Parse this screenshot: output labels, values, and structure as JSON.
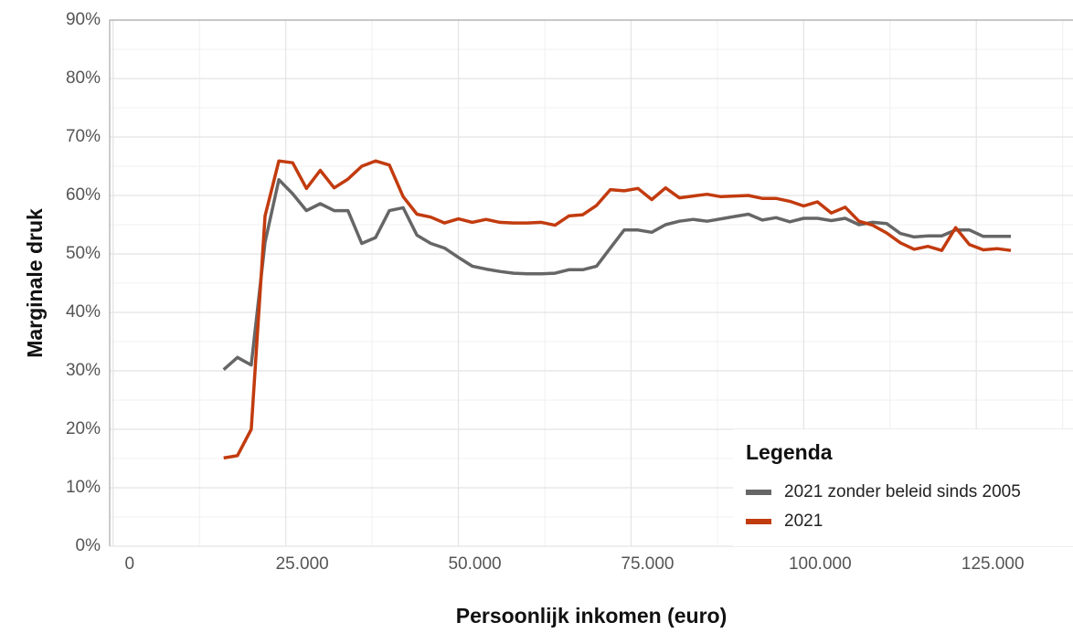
{
  "chart_data": {
    "type": "line",
    "x_label": "Persoonlijk inkomen (euro)",
    "y_label": "Marginale druk",
    "legend_title": "Legenda",
    "legend_position": "bottom-right",
    "grid": true,
    "xlim": [
      -500,
      139000
    ],
    "ylim": [
      0,
      90
    ],
    "xticks": [
      0,
      {
        "value": 25000,
        "label": "25.000"
      },
      {
        "value": 50000,
        "label": "50.000"
      },
      {
        "value": 75000,
        "label": "75.000"
      },
      {
        "value": 100000,
        "label": "100.000"
      },
      {
        "value": 125000,
        "label": "125.000"
      }
    ],
    "yticks": [
      {
        "value": 0,
        "label": "0%"
      },
      {
        "value": 10,
        "label": "10%"
      },
      {
        "value": 20,
        "label": "20%"
      },
      {
        "value": 30,
        "label": "30%"
      },
      {
        "value": 40,
        "label": "40%"
      },
      {
        "value": 50,
        "label": "50%"
      },
      {
        "value": 60,
        "label": "60%"
      },
      {
        "value": 70,
        "label": "70%"
      },
      {
        "value": 80,
        "label": "80%"
      },
      {
        "value": 90,
        "label": "90%"
      }
    ],
    "x": [
      16000,
      18000,
      20000,
      22000,
      24000,
      26000,
      28000,
      30000,
      32000,
      34000,
      36000,
      38000,
      40000,
      42000,
      44000,
      46000,
      48000,
      50000,
      52000,
      54000,
      56000,
      58000,
      60000,
      62000,
      64000,
      66000,
      68000,
      70000,
      72000,
      74000,
      76000,
      78000,
      80000,
      82000,
      84000,
      86000,
      88000,
      90000,
      92000,
      94000,
      96000,
      98000,
      100000,
      102000,
      104000,
      106000,
      108000,
      110000,
      112000,
      114000,
      116000,
      118000,
      120000,
      122000,
      124000,
      126000,
      128000,
      130000
    ],
    "series": [
      {
        "name": "2021 zonder beleid sinds 2005",
        "color": "#666666",
        "values": [
          30.2,
          32.3,
          31,
          52,
          62.7,
          60.3,
          57.4,
          58.6,
          57.4,
          57.4,
          51.8,
          52.8,
          57.4,
          57.9,
          53.2,
          51.8,
          51,
          49.4,
          47.9,
          47.4,
          47,
          46.7,
          46.6,
          46.6,
          46.7,
          47.3,
          47.3,
          47.9,
          51,
          54.1,
          54.1,
          53.7,
          55,
          55.6,
          55.9,
          55.6,
          56,
          56.4,
          56.8,
          55.8,
          56.2,
          55.5,
          56.1,
          56.1,
          55.7,
          56.1,
          55,
          55.4,
          55.2,
          53.5,
          52.9,
          53.1,
          53.1,
          54.1,
          54.1,
          53,
          53,
          53
        ]
      },
      {
        "name": "2021",
        "color": "#c23b0e",
        "values": [
          15.1,
          15.5,
          20,
          56.5,
          65.9,
          65.6,
          61.2,
          64.3,
          61.3,
          62.8,
          65,
          65.9,
          65.2,
          59.8,
          56.8,
          56.3,
          55.3,
          56,
          55.4,
          55.9,
          55.4,
          55.3,
          55.3,
          55.4,
          54.9,
          56.5,
          56.7,
          58.3,
          61,
          60.8,
          61.2,
          59.3,
          61.3,
          59.6,
          59.9,
          60.2,
          59.8,
          59.9,
          60,
          59.5,
          59.5,
          59,
          58.2,
          58.9,
          57,
          58,
          55.6,
          54.9,
          53.6,
          51.9,
          50.8,
          51.3,
          50.6,
          54.5,
          51.6,
          50.7,
          50.9,
          50.6
        ]
      }
    ]
  }
}
